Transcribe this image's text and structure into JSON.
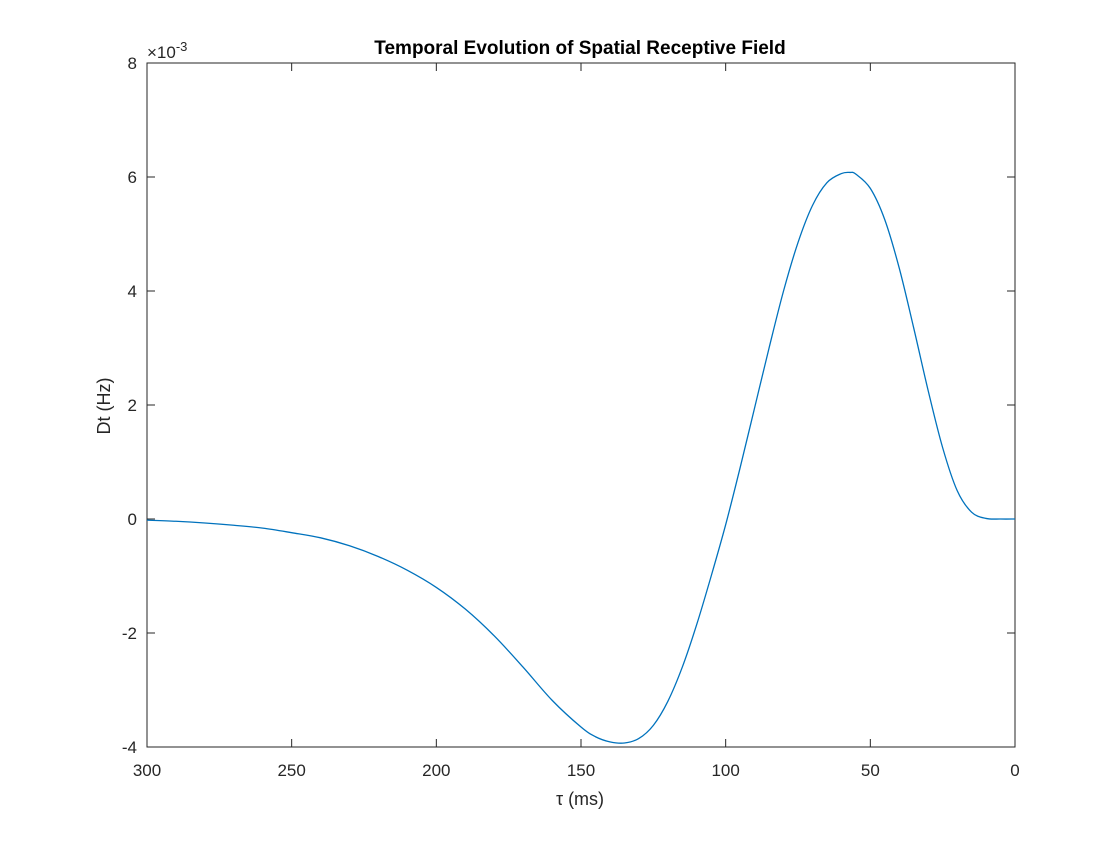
{
  "chart_data": {
    "type": "line",
    "title": "Temporal Evolution of Spatial Receptive Field",
    "xlabel": "τ (ms)",
    "ylabel": "Dt (Hz)",
    "y_exponent_label": "×10",
    "y_exponent_power": "-3",
    "xlim": [
      300,
      0
    ],
    "x_reversed": true,
    "ylim": [
      -4,
      8
    ],
    "y_scale_factor": 0.001,
    "x_ticks": [
      300,
      250,
      200,
      150,
      100,
      50,
      0
    ],
    "x_tick_labels": [
      "300",
      "250",
      "200",
      "150",
      "100",
      "50",
      "0"
    ],
    "y_ticks": [
      -4,
      -2,
      0,
      2,
      4,
      6,
      8
    ],
    "y_tick_labels": [
      "-4",
      "-2",
      "0",
      "2",
      "4",
      "6",
      "8"
    ],
    "grid": false,
    "box": true,
    "series": [
      {
        "color": "#0072BD",
        "x": [
          300,
          290,
          280,
          270,
          260,
          250,
          240,
          230,
          220,
          210,
          200,
          190,
          180,
          170,
          160,
          150,
          145,
          140,
          135,
          130,
          125,
          120,
          115,
          110,
          105,
          100,
          95,
          90,
          85,
          80,
          75,
          70,
          65,
          60,
          57,
          55,
          50,
          45,
          40,
          35,
          30,
          25,
          20,
          15,
          10,
          5,
          0
        ],
        "y": [
          -0.02,
          -0.04,
          -0.07,
          -0.11,
          -0.16,
          -0.24,
          -0.33,
          -0.47,
          -0.66,
          -0.9,
          -1.2,
          -1.58,
          -2.05,
          -2.6,
          -3.18,
          -3.65,
          -3.82,
          -3.91,
          -3.93,
          -3.85,
          -3.62,
          -3.2,
          -2.6,
          -1.85,
          -1.0,
          -0.1,
          0.9,
          1.95,
          3.0,
          4.0,
          4.85,
          5.5,
          5.9,
          6.06,
          6.08,
          6.05,
          5.8,
          5.25,
          4.4,
          3.35,
          2.25,
          1.25,
          0.5,
          0.12,
          0.01,
          0.0,
          0.0
        ]
      }
    ]
  }
}
